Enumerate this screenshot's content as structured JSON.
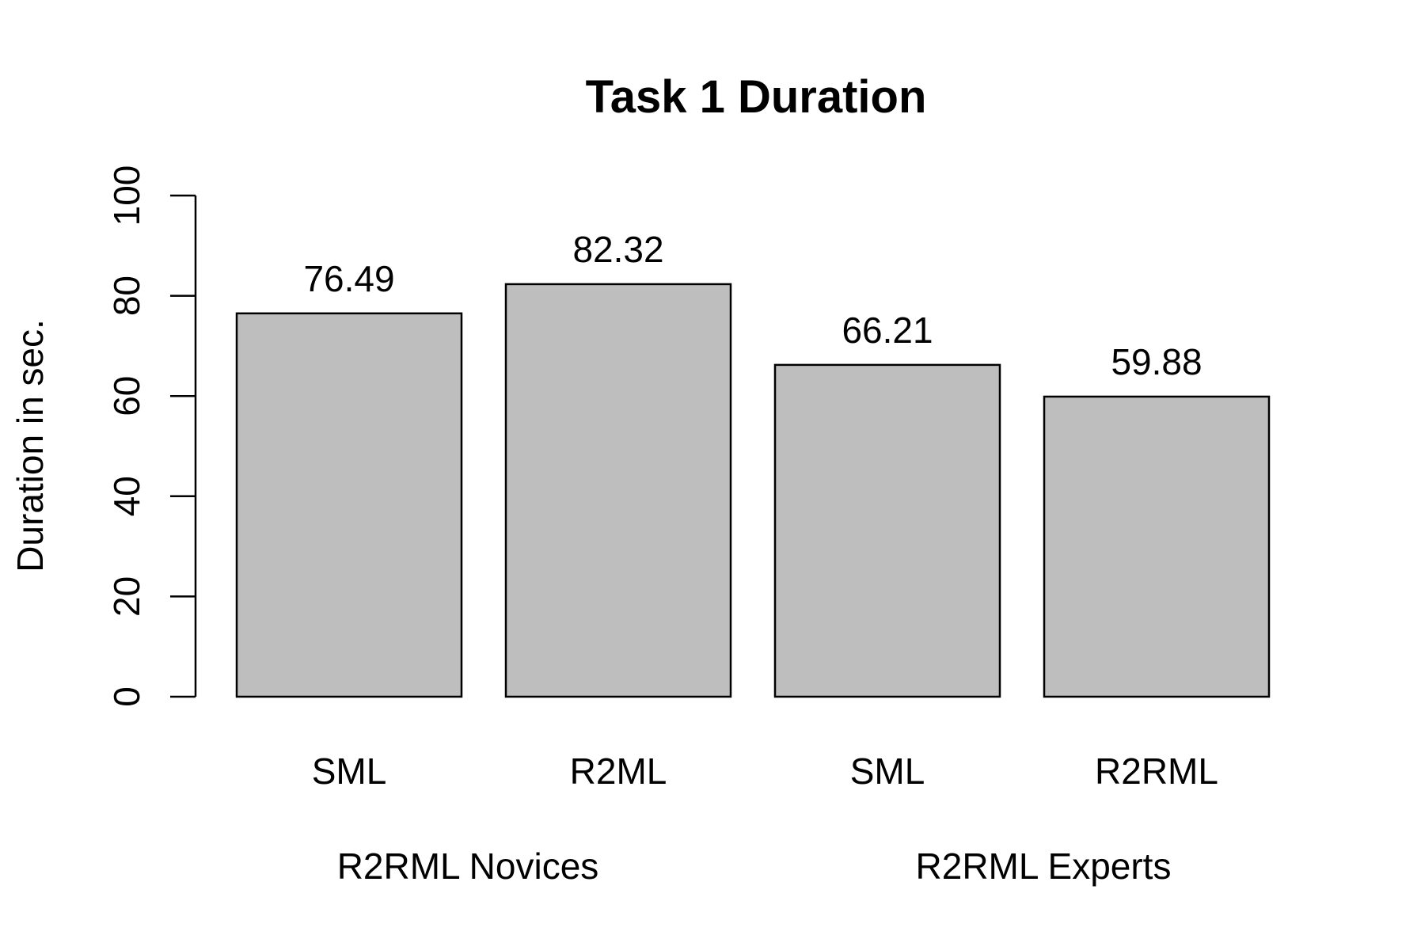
{
  "chart_data": {
    "type": "bar",
    "title": "Task 1 Duration",
    "ylabel": "Duration in sec.",
    "xlabel": "",
    "ylim": [
      0,
      100
    ],
    "yticks": [
      0,
      20,
      40,
      60,
      80,
      100
    ],
    "categories": [
      "SML",
      "R2ML",
      "SML",
      "R2RML"
    ],
    "values": [
      76.49,
      82.32,
      66.21,
      59.88
    ],
    "value_labels": [
      "76.49",
      "82.32",
      "66.21",
      "59.88"
    ],
    "groups": [
      {
        "label": "R2RML Novices",
        "categories": [
          0,
          1
        ]
      },
      {
        "label": "R2RML Experts",
        "categories": [
          2,
          3
        ]
      }
    ],
    "bar_color": "#bebebe",
    "grid": false,
    "legend": "none"
  }
}
